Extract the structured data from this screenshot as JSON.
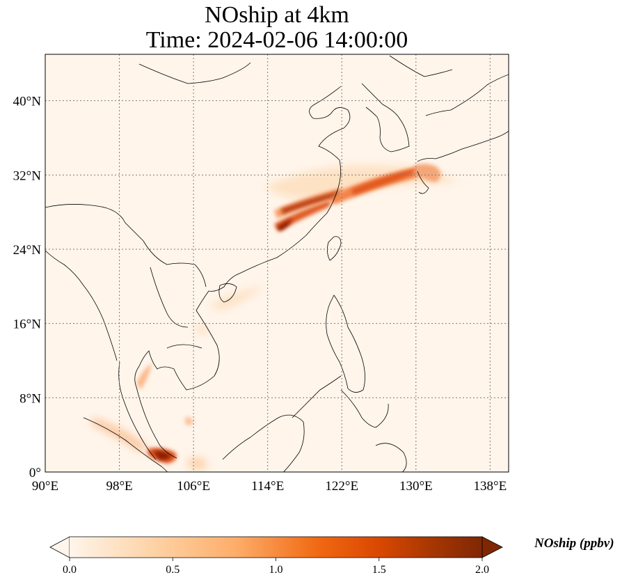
{
  "title": {
    "line1": "NOship at 4km",
    "line2": "Time: 2024-02-06 14:00:00"
  },
  "map": {
    "lon_range": [
      90,
      140
    ],
    "lat_range": [
      0,
      45
    ],
    "lon_ticks": [
      {
        "value": 90,
        "label": "90°E"
      },
      {
        "value": 98,
        "label": "98°E"
      },
      {
        "value": 106,
        "label": "106°E"
      },
      {
        "value": 114,
        "label": "114°E"
      },
      {
        "value": 122,
        "label": "122°E"
      },
      {
        "value": 130,
        "label": "130°E"
      },
      {
        "value": 138,
        "label": "138°E"
      }
    ],
    "lat_ticks": [
      {
        "value": 0,
        "label": "0°"
      },
      {
        "value": 8,
        "label": "8°N"
      },
      {
        "value": 16,
        "label": "16°N"
      },
      {
        "value": 24,
        "label": "24°N"
      },
      {
        "value": 32,
        "label": "32°N"
      },
      {
        "value": 40,
        "label": "40°N"
      }
    ],
    "gridlines": true,
    "background_color": "#fff5eb",
    "plumes": [
      {
        "name": "east-china-sea-plume",
        "lon": 118.5,
        "lat": 29.3,
        "value": 1.9
      },
      {
        "name": "yellow-sea-to-japan-plume",
        "lon": 126.5,
        "lat": 31.0,
        "value": 1.2
      },
      {
        "name": "kyushu-plume",
        "lon": 131.0,
        "lat": 32.2,
        "value": 0.8
      },
      {
        "name": "zhejiang-coast-plume",
        "lon": 116.3,
        "lat": 26.8,
        "value": 2.0
      },
      {
        "name": "singapore-strait-plume",
        "lon": 103.5,
        "lat": 1.7,
        "value": 2.0
      },
      {
        "name": "malacca-strait-plume",
        "lon": 100.0,
        "lat": 4.0,
        "value": 0.7
      },
      {
        "name": "gulf-of-thailand-plume",
        "lon": 101.5,
        "lat": 10.5,
        "value": 0.6
      },
      {
        "name": "south-china-sea-plume",
        "lon": 106.5,
        "lat": 5.5,
        "value": 0.5
      },
      {
        "name": "hainan-plume",
        "lon": 108.5,
        "lat": 18.0,
        "value": 0.3
      }
    ]
  },
  "colorbar": {
    "label": "NOship (ppbv)",
    "min": 0,
    "max": 2,
    "ticks": [
      {
        "value": 0.0,
        "label": "0.0"
      },
      {
        "value": 0.5,
        "label": "0.5"
      },
      {
        "value": 1.0,
        "label": "1.0"
      },
      {
        "value": 1.5,
        "label": "1.5"
      },
      {
        "value": 2.0,
        "label": "2.0"
      }
    ],
    "colormap": [
      "#fff5eb",
      "#fdd3a7",
      "#fdae6b",
      "#f16913",
      "#d94801",
      "#a63603",
      "#7f2704"
    ],
    "extend": "both"
  }
}
